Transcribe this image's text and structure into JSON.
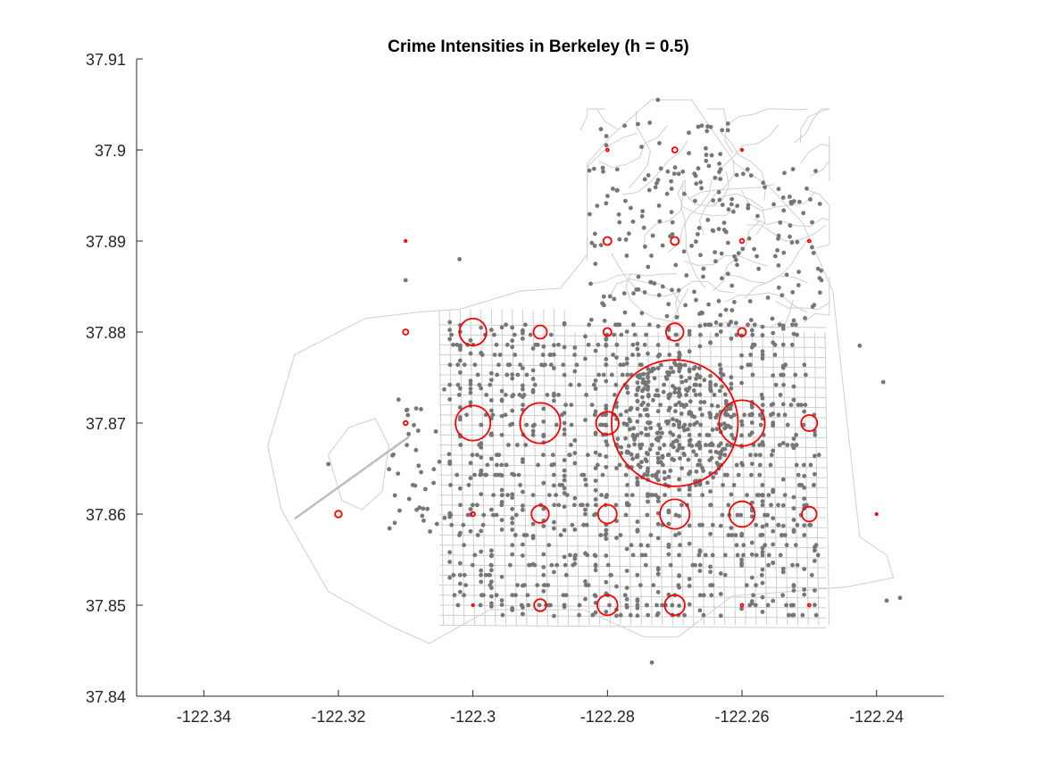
{
  "chart_data": {
    "type": "scatter",
    "title": "Crime Intensities in Berkeley (h = 0.5)",
    "xlabel": "",
    "ylabel": "",
    "xlim": [
      -122.35,
      -122.23
    ],
    "ylim": [
      37.84,
      37.91
    ],
    "x_ticks": [
      -122.34,
      -122.32,
      -122.3,
      -122.28,
      -122.26,
      -122.24
    ],
    "x_tick_labels": [
      "-122.34",
      "-122.32",
      "-122.3",
      "-122.28",
      "-122.26",
      "-122.24"
    ],
    "y_ticks": [
      37.84,
      37.85,
      37.86,
      37.87,
      37.88,
      37.89,
      37.9,
      37.91
    ],
    "y_tick_labels": [
      "37.84",
      "37.85",
      "37.86",
      "37.87",
      "37.88",
      "37.89",
      "37.9",
      "37.91"
    ],
    "grid": false,
    "colors": {
      "points": "#767676",
      "intensity": "#ff0000",
      "streets": "#cfcfcf"
    },
    "intensity_circles": [
      {
        "x": -122.27,
        "y": 37.9,
        "r": 0.0004
      },
      {
        "x": -122.28,
        "y": 37.9,
        "r": 0.0002
      },
      {
        "x": -122.26,
        "y": 37.9,
        "r": 0.0001
      },
      {
        "x": -122.28,
        "y": 37.89,
        "r": 0.0006
      },
      {
        "x": -122.27,
        "y": 37.89,
        "r": 0.0006
      },
      {
        "x": -122.26,
        "y": 37.89,
        "r": 0.0003
      },
      {
        "x": -122.25,
        "y": 37.89,
        "r": 0.0002
      },
      {
        "x": -122.31,
        "y": 37.89,
        "r": 0.0001
      },
      {
        "x": -122.3,
        "y": 37.88,
        "r": 0.002
      },
      {
        "x": -122.29,
        "y": 37.88,
        "r": 0.001
      },
      {
        "x": -122.28,
        "y": 37.88,
        "r": 0.0006
      },
      {
        "x": -122.27,
        "y": 37.88,
        "r": 0.0013
      },
      {
        "x": -122.26,
        "y": 37.88,
        "r": 0.0006
      },
      {
        "x": -122.31,
        "y": 37.88,
        "r": 0.0004
      },
      {
        "x": -122.3,
        "y": 37.87,
        "r": 0.0026
      },
      {
        "x": -122.29,
        "y": 37.87,
        "r": 0.003
      },
      {
        "x": -122.28,
        "y": 37.87,
        "r": 0.0017
      },
      {
        "x": -122.27,
        "y": 37.87,
        "r": 0.0094
      },
      {
        "x": -122.26,
        "y": 37.87,
        "r": 0.0034
      },
      {
        "x": -122.25,
        "y": 37.87,
        "r": 0.0012
      },
      {
        "x": -122.31,
        "y": 37.87,
        "r": 0.0003
      },
      {
        "x": -122.32,
        "y": 37.86,
        "r": 0.0005
      },
      {
        "x": -122.3,
        "y": 37.86,
        "r": 0.0003
      },
      {
        "x": -122.29,
        "y": 37.86,
        "r": 0.0013
      },
      {
        "x": -122.28,
        "y": 37.86,
        "r": 0.0014
      },
      {
        "x": -122.27,
        "y": 37.86,
        "r": 0.0022
      },
      {
        "x": -122.26,
        "y": 37.86,
        "r": 0.0019
      },
      {
        "x": -122.25,
        "y": 37.86,
        "r": 0.0011
      },
      {
        "x": -122.24,
        "y": 37.86,
        "r": 0.0001
      },
      {
        "x": -122.29,
        "y": 37.85,
        "r": 0.0009
      },
      {
        "x": -122.28,
        "y": 37.85,
        "r": 0.0015
      },
      {
        "x": -122.27,
        "y": 37.85,
        "r": 0.0015
      },
      {
        "x": -122.26,
        "y": 37.85,
        "r": 0.0002
      },
      {
        "x": -122.25,
        "y": 37.85,
        "r": 0.0002
      },
      {
        "x": -122.3,
        "y": 37.85,
        "r": 0.0001
      }
    ],
    "isolated_points": [
      {
        "x": -122.31,
        "y": 37.8857
      },
      {
        "x": -122.302,
        "y": 37.888
      },
      {
        "x": -122.2725,
        "y": 37.9055
      },
      {
        "x": -122.2734,
        "y": 37.8437
      },
      {
        "x": -122.2385,
        "y": 37.8505
      },
      {
        "x": -122.2365,
        "y": 37.8508
      },
      {
        "x": -122.2425,
        "y": 37.8785
      },
      {
        "x": -122.239,
        "y": 37.8745
      },
      {
        "x": -122.3215,
        "y": 37.8655
      }
    ]
  }
}
